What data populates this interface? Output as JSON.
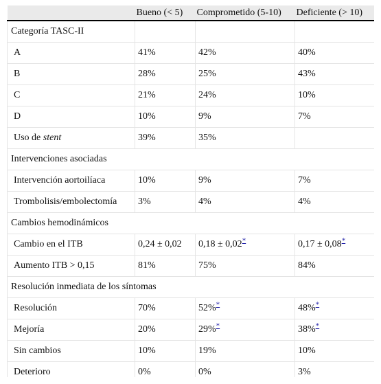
{
  "table": {
    "columns": [
      "Bueno (< 5)",
      "Comprometido (5-10)",
      "Deficiente (> 10)"
    ],
    "rows": [
      {
        "section": "Categoría TASC-II",
        "cells": [
          null,
          null,
          null
        ]
      },
      {
        "label": "A",
        "cells": [
          "41%",
          "42%",
          "40%"
        ]
      },
      {
        "label": "B",
        "cells": [
          "28%",
          "25%",
          "43%"
        ]
      },
      {
        "label": "C",
        "cells": [
          "21%",
          "24%",
          "10%"
        ]
      },
      {
        "label": "D",
        "cells": [
          "10%",
          "9%",
          "7%"
        ]
      },
      {
        "label": [
          {
            "text": "Uso de "
          },
          {
            "text": "stent",
            "italic": true
          }
        ],
        "cells": [
          "39%",
          "35%",
          null
        ]
      },
      {
        "section": "Intervenciones asociadas"
      },
      {
        "label": "Intervención aortoilíaca",
        "cells": [
          "10%",
          "9%",
          "7%"
        ]
      },
      {
        "label": "Trombolisis/embolectomía",
        "cells": [
          "3%",
          "4%",
          "4%"
        ]
      },
      {
        "section": "Cambios hemodinámicos"
      },
      {
        "label": "Cambio en el ITB",
        "cells": [
          "0,24 ± 0,02",
          {
            "text": "0,18 ± 0,02",
            "note": "*"
          },
          {
            "text": "0,17 ± 0,08",
            "note": "*"
          }
        ]
      },
      {
        "label": "Aumento ITB > 0,15",
        "cells": [
          "81%",
          "75%",
          "84%"
        ]
      },
      {
        "section": "Resolución inmediata de los síntomas"
      },
      {
        "label": "Resolución",
        "cells": [
          "70%",
          {
            "text": "52%",
            "note": "*"
          },
          {
            "text": "48%",
            "note": "*"
          }
        ]
      },
      {
        "label": "Mejoría",
        "cells": [
          "20%",
          {
            "text": "29%",
            "note": "*"
          },
          {
            "text": "38%",
            "note": "*"
          }
        ]
      },
      {
        "label": "Sin cambios",
        "cells": [
          "10%",
          "19%",
          "10%"
        ]
      },
      {
        "label": "Deterioro",
        "cells": [
          "0%",
          "0%",
          "3%"
        ]
      }
    ]
  }
}
